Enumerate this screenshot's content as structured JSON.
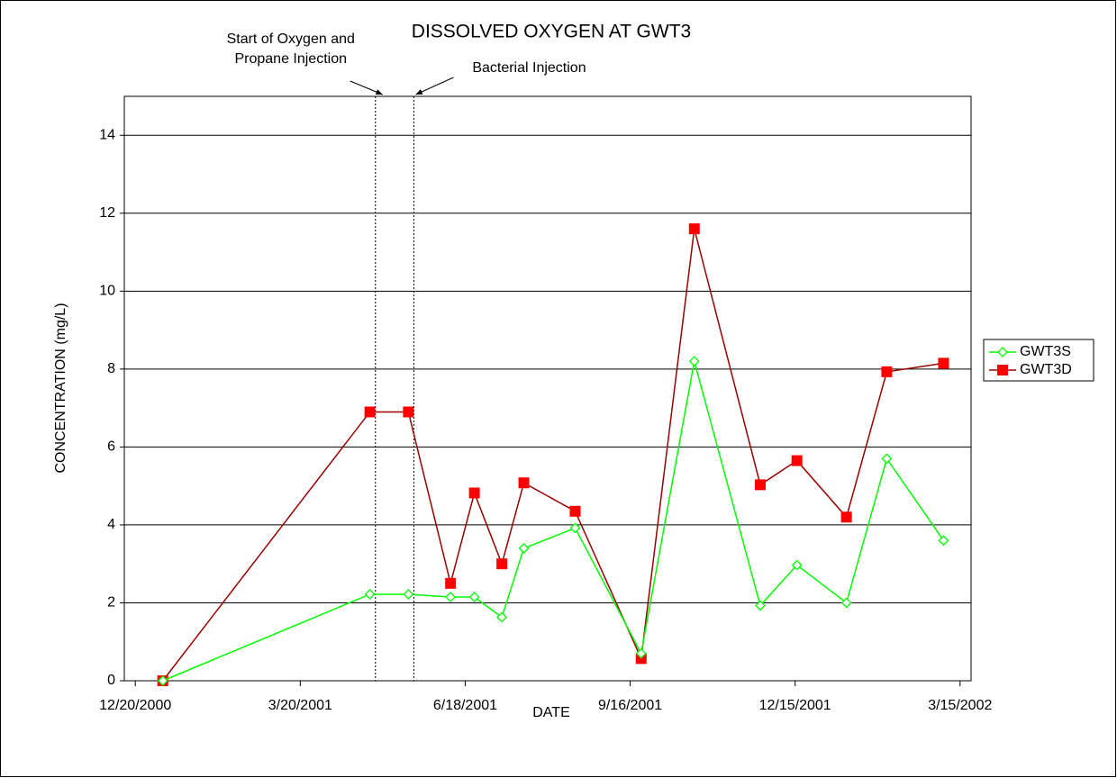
{
  "chart_data": {
    "type": "line",
    "title": "DISSOLVED OXYGEN AT GWT3",
    "x_label": "DATE",
    "y_label": "CONCENTRATION (mg/L)",
    "x": [
      "1/4/2001",
      "4/27/2001",
      "5/18/2001",
      "6/10/2001",
      "6/23/2001",
      "7/8/2001",
      "7/20/2001",
      "8/17/2001",
      "9/22/2001",
      "10/21/2001",
      "11/26/2001",
      "12/16/2001",
      "1/12/2002",
      "2/3/2002",
      "3/6/2002"
    ],
    "series": [
      {
        "name": "GWT3S",
        "color": "#00ff00",
        "marker": "diamond",
        "values": [
          0,
          2.22,
          2.22,
          2.15,
          2.15,
          1.63,
          3.4,
          3.92,
          0.7,
          8.2,
          1.93,
          2.97,
          2.0,
          5.7,
          3.6
        ]
      },
      {
        "name": "GWT3D",
        "color": "#990000",
        "marker": "square",
        "marker_color": "#ff0000",
        "values": [
          0,
          6.9,
          6.9,
          2.5,
          4.82,
          3.0,
          5.08,
          4.35,
          0.57,
          11.6,
          5.03,
          5.65,
          4.2,
          7.93,
          8.15
        ]
      }
    ],
    "xlim": [
      "12/14/2000",
      "3/21/2002"
    ],
    "xticks": [
      "12/20/2000",
      "3/20/2001",
      "6/18/2001",
      "9/16/2001",
      "12/15/2001",
      "3/15/2002"
    ],
    "ylim": [
      0,
      15
    ],
    "yticks": [
      0,
      2,
      4,
      6,
      8,
      10,
      12,
      14
    ],
    "grid": true,
    "legend": "right",
    "annotations": [
      {
        "lines": [
          "Start of Oxygen and",
          "Propane Injection"
        ],
        "x": "4/30/2001"
      },
      {
        "lines": [
          "Bacterial Injection"
        ],
        "x": "5/21/2001"
      }
    ]
  }
}
